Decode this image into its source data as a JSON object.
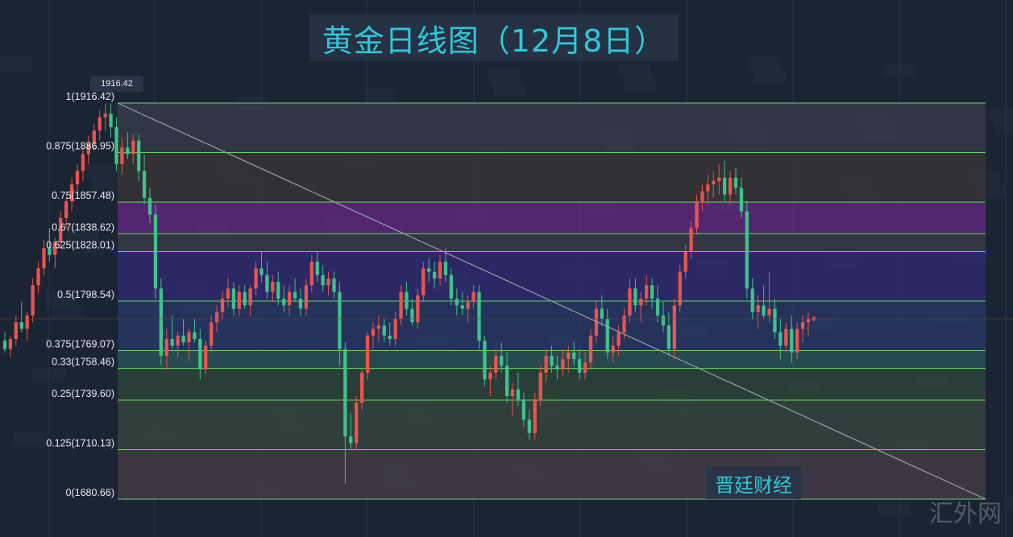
{
  "title": "黄金日线图（12月8日）",
  "brand": "晋廷财经",
  "watermark": "汇外网",
  "peak_tag": "1916.42",
  "chart_data": {
    "type": "candlestick",
    "ylim": [
      1672,
      1935
    ],
    "fib_levels": [
      {
        "label": "1(1916.42)",
        "value": 1916.42
      },
      {
        "label": "0.875(1886.95)",
        "value": 1886.95
      },
      {
        "label": "0.75(1857.48)",
        "value": 1857.48
      },
      {
        "label": "0.67(1838.62)",
        "value": 1838.62
      },
      {
        "label": "0.625(1828.01)",
        "value": 1828.01
      },
      {
        "label": "0.5(1798.54)",
        "value": 1798.54
      },
      {
        "label": "0.375(1769.07)",
        "value": 1769.07
      },
      {
        "label": "0.33(1758.46)",
        "value": 1758.46
      },
      {
        "label": "0.25(1739.60)",
        "value": 1739.6
      },
      {
        "label": "0.125(1710.13)",
        "value": 1710.13
      },
      {
        "label": "0(1680.66)",
        "value": 1680.66
      }
    ],
    "band_colors": [
      "#3a3f4c",
      "#3b3838",
      "#6a2a8a",
      "#3d3f4a",
      "#332b7a",
      "#2a3a6c",
      "#2e5a5a",
      "#2f4a3a",
      "#3a4a3e",
      "#4a4048"
    ],
    "level_color": "#5fdc5f",
    "up_color": "#e8554e",
    "down_color": "#3fc28a",
    "trendline": {
      "start": [
        1916.42,
        0
      ],
      "end": [
        1680.66,
        1
      ],
      "color": "#9aa0aa"
    },
    "candles": [
      [
        1775,
        1780,
        1768,
        1770
      ],
      [
        1770,
        1778,
        1765,
        1776
      ],
      [
        1776,
        1790,
        1772,
        1786
      ],
      [
        1786,
        1798,
        1780,
        1782
      ],
      [
        1782,
        1792,
        1775,
        1790
      ],
      [
        1790,
        1812,
        1786,
        1808
      ],
      [
        1808,
        1822,
        1803,
        1818
      ],
      [
        1818,
        1835,
        1814,
        1830
      ],
      [
        1830,
        1842,
        1822,
        1826
      ],
      [
        1826,
        1836,
        1818,
        1834
      ],
      [
        1834,
        1852,
        1830,
        1848
      ],
      [
        1848,
        1860,
        1842,
        1858
      ],
      [
        1858,
        1872,
        1852,
        1868
      ],
      [
        1868,
        1880,
        1862,
        1876
      ],
      [
        1876,
        1890,
        1870,
        1886
      ],
      [
        1886,
        1897,
        1880,
        1892
      ],
      [
        1892,
        1904,
        1888,
        1900
      ],
      [
        1900,
        1912,
        1894,
        1908
      ],
      [
        1908,
        1916,
        1900,
        1910
      ],
      [
        1910,
        1916,
        1896,
        1902
      ],
      [
        1902,
        1908,
        1876,
        1880
      ],
      [
        1880,
        1896,
        1874,
        1890
      ],
      [
        1890,
        1899,
        1883,
        1886
      ],
      [
        1886,
        1898,
        1880,
        1894
      ],
      [
        1894,
        1898,
        1870,
        1876
      ],
      [
        1876,
        1886,
        1856,
        1860
      ],
      [
        1860,
        1866,
        1845,
        1850
      ],
      [
        1850,
        1856,
        1800,
        1806
      ],
      [
        1806,
        1812,
        1760,
        1766
      ],
      [
        1766,
        1782,
        1758,
        1776
      ],
      [
        1776,
        1790,
        1770,
        1772
      ],
      [
        1772,
        1780,
        1765,
        1778
      ],
      [
        1778,
        1788,
        1772,
        1774
      ],
      [
        1774,
        1782,
        1763,
        1780
      ],
      [
        1780,
        1788,
        1774,
        1776
      ],
      [
        1776,
        1782,
        1752,
        1758
      ],
      [
        1758,
        1775,
        1755,
        1772
      ],
      [
        1772,
        1790,
        1768,
        1786
      ],
      [
        1786,
        1796,
        1780,
        1792
      ],
      [
        1792,
        1805,
        1788,
        1800
      ],
      [
        1800,
        1812,
        1795,
        1806
      ],
      [
        1806,
        1810,
        1790,
        1794
      ],
      [
        1794,
        1808,
        1790,
        1804
      ],
      [
        1804,
        1808,
        1794,
        1796
      ],
      [
        1796,
        1808,
        1790,
        1806
      ],
      [
        1806,
        1822,
        1802,
        1818
      ],
      [
        1818,
        1828,
        1810,
        1814
      ],
      [
        1814,
        1822,
        1800,
        1804
      ],
      [
        1804,
        1814,
        1798,
        1810
      ],
      [
        1810,
        1816,
        1796,
        1800
      ],
      [
        1800,
        1808,
        1792,
        1796
      ],
      [
        1796,
        1808,
        1790,
        1804
      ],
      [
        1804,
        1812,
        1798,
        1800
      ],
      [
        1800,
        1806,
        1790,
        1794
      ],
      [
        1794,
        1812,
        1790,
        1808
      ],
      [
        1808,
        1826,
        1804,
        1822
      ],
      [
        1822,
        1828,
        1810,
        1814
      ],
      [
        1814,
        1820,
        1804,
        1808
      ],
      [
        1808,
        1816,
        1802,
        1812
      ],
      [
        1812,
        1816,
        1800,
        1804
      ],
      [
        1804,
        1810,
        1760,
        1770
      ],
      [
        1770,
        1774,
        1690,
        1718
      ],
      [
        1718,
        1732,
        1710,
        1714
      ],
      [
        1714,
        1742,
        1710,
        1738
      ],
      [
        1738,
        1758,
        1734,
        1756
      ],
      [
        1756,
        1780,
        1752,
        1778
      ],
      [
        1778,
        1786,
        1770,
        1782
      ],
      [
        1782,
        1790,
        1774,
        1784
      ],
      [
        1784,
        1788,
        1774,
        1778
      ],
      [
        1778,
        1786,
        1772,
        1776
      ],
      [
        1776,
        1792,
        1772,
        1788
      ],
      [
        1788,
        1808,
        1784,
        1804
      ],
      [
        1804,
        1810,
        1790,
        1794
      ],
      [
        1794,
        1800,
        1784,
        1786
      ],
      [
        1786,
        1806,
        1782,
        1802
      ],
      [
        1802,
        1822,
        1798,
        1818
      ],
      [
        1818,
        1824,
        1810,
        1816
      ],
      [
        1816,
        1822,
        1806,
        1812
      ],
      [
        1812,
        1826,
        1808,
        1822
      ],
      [
        1822,
        1830,
        1810,
        1814
      ],
      [
        1814,
        1818,
        1796,
        1800
      ],
      [
        1800,
        1806,
        1790,
        1796
      ],
      [
        1796,
        1804,
        1790,
        1794
      ],
      [
        1794,
        1802,
        1786,
        1798
      ],
      [
        1798,
        1808,
        1794,
        1804
      ],
      [
        1804,
        1808,
        1770,
        1775
      ],
      [
        1775,
        1778,
        1748,
        1752
      ],
      [
        1752,
        1760,
        1742,
        1756
      ],
      [
        1756,
        1770,
        1752,
        1766
      ],
      [
        1766,
        1774,
        1756,
        1760
      ],
      [
        1760,
        1768,
        1738,
        1742
      ],
      [
        1742,
        1750,
        1730,
        1746
      ],
      [
        1746,
        1756,
        1736,
        1740
      ],
      [
        1740,
        1744,
        1724,
        1728
      ],
      [
        1728,
        1734,
        1716,
        1720
      ],
      [
        1720,
        1744,
        1716,
        1740
      ],
      [
        1740,
        1760,
        1736,
        1756
      ],
      [
        1756,
        1770,
        1750,
        1766
      ],
      [
        1766,
        1772,
        1756,
        1760
      ],
      [
        1760,
        1766,
        1752,
        1758
      ],
      [
        1758,
        1770,
        1754,
        1764
      ],
      [
        1764,
        1772,
        1756,
        1768
      ],
      [
        1768,
        1774,
        1760,
        1764
      ],
      [
        1764,
        1770,
        1752,
        1756
      ],
      [
        1756,
        1768,
        1752,
        1762
      ],
      [
        1762,
        1782,
        1758,
        1778
      ],
      [
        1778,
        1798,
        1774,
        1794
      ],
      [
        1794,
        1802,
        1784,
        1788
      ],
      [
        1788,
        1794,
        1764,
        1768
      ],
      [
        1768,
        1778,
        1762,
        1772
      ],
      [
        1772,
        1784,
        1766,
        1780
      ],
      [
        1780,
        1794,
        1776,
        1790
      ],
      [
        1790,
        1812,
        1786,
        1806
      ],
      [
        1806,
        1812,
        1792,
        1796
      ],
      [
        1796,
        1804,
        1786,
        1800
      ],
      [
        1800,
        1814,
        1796,
        1808
      ],
      [
        1808,
        1812,
        1794,
        1800
      ],
      [
        1800,
        1808,
        1786,
        1790
      ],
      [
        1790,
        1798,
        1780,
        1784
      ],
      [
        1784,
        1792,
        1766,
        1770
      ],
      [
        1770,
        1800,
        1764,
        1796
      ],
      [
        1796,
        1820,
        1792,
        1816
      ],
      [
        1816,
        1832,
        1812,
        1828
      ],
      [
        1828,
        1846,
        1824,
        1842
      ],
      [
        1842,
        1862,
        1838,
        1858
      ],
      [
        1858,
        1868,
        1852,
        1864
      ],
      [
        1864,
        1874,
        1856,
        1868
      ],
      [
        1868,
        1876,
        1860,
        1870
      ],
      [
        1870,
        1880,
        1862,
        1872
      ],
      [
        1872,
        1882,
        1858,
        1862
      ],
      [
        1862,
        1876,
        1856,
        1872
      ],
      [
        1872,
        1878,
        1862,
        1866
      ],
      [
        1866,
        1872,
        1848,
        1852
      ],
      [
        1852,
        1858,
        1800,
        1806
      ],
      [
        1806,
        1812,
        1788,
        1792
      ],
      [
        1792,
        1802,
        1782,
        1796
      ],
      [
        1796,
        1808,
        1788,
        1790
      ],
      [
        1790,
        1816,
        1786,
        1794
      ],
      [
        1794,
        1800,
        1776,
        1780
      ],
      [
        1780,
        1788,
        1764,
        1772
      ],
      [
        1772,
        1786,
        1768,
        1782
      ],
      [
        1782,
        1790,
        1762,
        1768
      ],
      [
        1768,
        1786,
        1764,
        1782
      ],
      [
        1782,
        1790,
        1774,
        1786
      ],
      [
        1786,
        1792,
        1778,
        1788
      ]
    ]
  }
}
